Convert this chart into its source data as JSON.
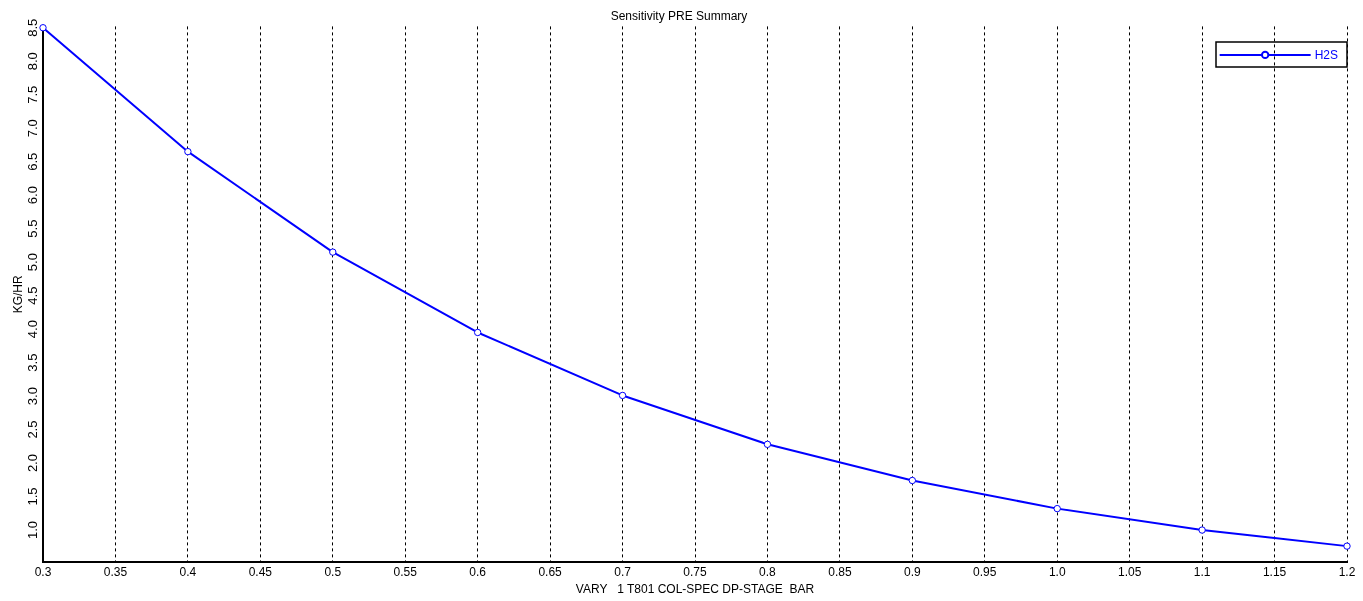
{
  "chart_data": {
    "type": "line",
    "title": "Sensitivity PRE Summary",
    "xlabel": "VARY   1 T801 COL-SPEC DP-STAGE  BAR",
    "ylabel": "KG/HR",
    "x": [
      0.3,
      0.4,
      0.5,
      0.6,
      0.7,
      0.8,
      0.9,
      1.0,
      1.1,
      1.2
    ],
    "series": [
      {
        "name": "H2S",
        "color": "#0000ff",
        "values": [
          8.5,
          6.65,
          5.15,
          3.95,
          3.01,
          2.28,
          1.74,
          1.32,
          1.0,
          0.76
        ]
      }
    ],
    "xlim": [
      0.3,
      1.2
    ],
    "xticks": [
      0.3,
      0.35,
      0.4,
      0.45,
      0.5,
      0.55,
      0.6,
      0.65,
      0.7,
      0.75,
      0.8,
      0.85,
      0.9,
      0.95,
      {
        "value": 1,
        "label": "1.0"
      },
      1.05,
      1.1,
      1.15,
      1.2
    ],
    "ylim": [
      0.52,
      8.52
    ],
    "yticks": [
      {
        "value": 1,
        "label": "1.0"
      },
      1.5,
      {
        "value": 2,
        "label": "2.0"
      },
      2.5,
      {
        "value": 3,
        "label": "3.0"
      },
      3.5,
      {
        "value": 4,
        "label": "4.0"
      },
      4.5,
      {
        "value": 5,
        "label": "5.0"
      },
      5.5,
      {
        "value": 6,
        "label": "6.0"
      },
      6.5,
      {
        "value": 7,
        "label": "7.0"
      },
      7.5,
      {
        "value": 8,
        "label": "8.0"
      },
      8.5
    ],
    "grid": "x",
    "legend": "top right",
    "marker": "circle",
    "line_style": "solid"
  }
}
